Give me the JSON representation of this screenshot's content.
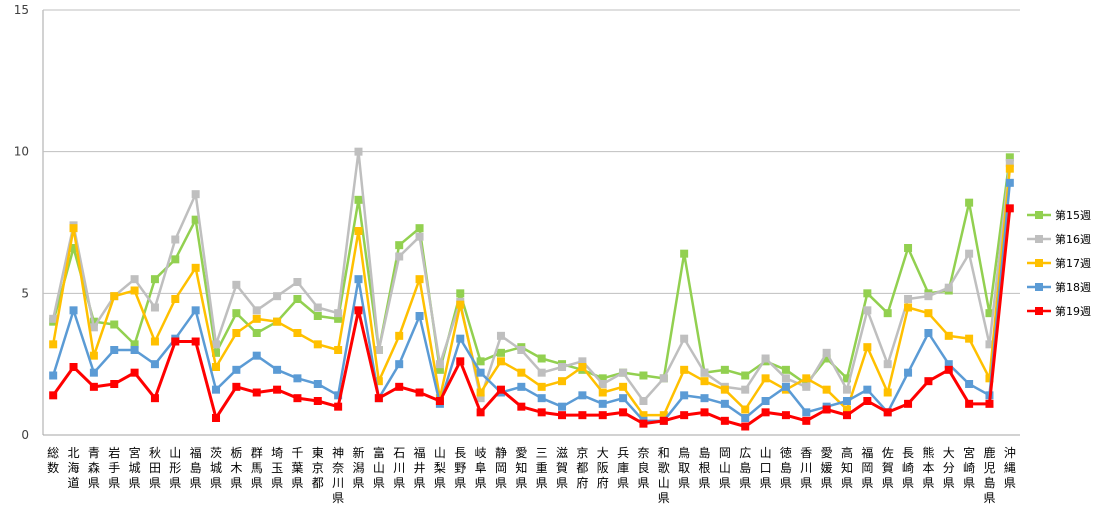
{
  "chart_data": {
    "type": "line",
    "title": "",
    "xlabel": "",
    "ylabel": "",
    "ylim": [
      0,
      15
    ],
    "yticks": [
      0,
      5,
      10,
      15
    ],
    "grid": true,
    "legend_position": "right",
    "categories": [
      "総数",
      "北海道",
      "青森県",
      "岩手県",
      "宮城県",
      "秋田県",
      "山形県",
      "福島県",
      "茨城県",
      "栃木県",
      "群馬県",
      "埼玉県",
      "千葉県",
      "東京都",
      "神奈川県",
      "新潟県",
      "富山県",
      "石川県",
      "福井県",
      "山梨県",
      "長野県",
      "岐阜県",
      "静岡県",
      "愛知県",
      "三重県",
      "滋賀県",
      "京都府",
      "大阪府",
      "兵庫県",
      "奈良県",
      "和歌山県",
      "鳥取県",
      "島根県",
      "岡山県",
      "広島県",
      "山口県",
      "徳島県",
      "香川県",
      "愛媛県",
      "高知県",
      "福岡県",
      "佐賀県",
      "長崎県",
      "熊本県",
      "大分県",
      "宮崎県",
      "鹿児島県",
      "沖縄県"
    ],
    "series": [
      {
        "name": "第15週",
        "color": "#92d050",
        "values": [
          4.0,
          6.6,
          4.0,
          3.9,
          3.2,
          5.5,
          6.2,
          7.6,
          2.9,
          4.3,
          3.6,
          4.0,
          4.8,
          4.2,
          4.1,
          8.3,
          3.0,
          6.7,
          7.3,
          2.3,
          5.0,
          2.6,
          2.9,
          3.1,
          2.7,
          2.5,
          2.3,
          2.0,
          2.2,
          2.1,
          2.0,
          6.4,
          2.2,
          2.3,
          2.1,
          2.6,
          2.3,
          1.8,
          2.7,
          2.0,
          5.0,
          4.3,
          6.6,
          5.0,
          5.1,
          8.2,
          4.3,
          9.8
        ]
      },
      {
        "name": "第16週",
        "color": "#bfbfbf",
        "values": [
          4.1,
          7.4,
          3.8,
          4.9,
          5.5,
          4.5,
          6.9,
          8.5,
          3.2,
          5.3,
          4.4,
          4.9,
          5.4,
          4.5,
          4.3,
          10.0,
          3.0,
          6.3,
          7.0,
          2.5,
          4.7,
          1.3,
          3.5,
          3.0,
          2.2,
          2.4,
          2.6,
          1.8,
          2.2,
          1.2,
          2.0,
          3.4,
          2.2,
          1.7,
          1.6,
          2.7,
          2.0,
          1.7,
          2.9,
          1.6,
          4.4,
          2.5,
          4.8,
          4.9,
          5.2,
          6.4,
          3.2,
          9.6
        ]
      },
      {
        "name": "第17週",
        "color": "#ffc000",
        "values": [
          3.2,
          7.3,
          2.8,
          4.9,
          5.1,
          3.3,
          4.8,
          5.9,
          2.4,
          3.6,
          4.1,
          4.0,
          3.6,
          3.2,
          3.0,
          7.2,
          1.9,
          3.5,
          5.5,
          1.3,
          4.6,
          1.5,
          2.6,
          2.2,
          1.7,
          1.9,
          2.4,
          1.5,
          1.7,
          0.7,
          0.7,
          2.3,
          1.9,
          1.6,
          0.9,
          2.0,
          1.6,
          2.0,
          1.6,
          0.9,
          3.1,
          1.5,
          4.5,
          4.3,
          3.5,
          3.4,
          2.0,
          9.4
        ]
      },
      {
        "name": "第18週",
        "color": "#5b9bd5",
        "values": [
          2.1,
          4.4,
          2.2,
          3.0,
          3.0,
          2.5,
          3.4,
          4.4,
          1.6,
          2.3,
          2.8,
          2.3,
          2.0,
          1.8,
          1.4,
          5.5,
          1.3,
          2.5,
          4.2,
          1.1,
          3.4,
          2.2,
          1.5,
          1.7,
          1.3,
          1.0,
          1.4,
          1.1,
          1.3,
          0.5,
          0.5,
          1.4,
          1.3,
          1.1,
          0.6,
          1.2,
          1.7,
          0.8,
          1.0,
          1.2,
          1.6,
          0.8,
          2.2,
          3.6,
          2.5,
          1.8,
          1.4,
          8.9
        ]
      },
      {
        "name": "第19週",
        "color": "#ff0000",
        "values": [
          1.4,
          2.4,
          1.7,
          1.8,
          2.2,
          1.3,
          3.3,
          3.3,
          0.6,
          1.7,
          1.5,
          1.6,
          1.3,
          1.2,
          1.0,
          4.4,
          1.3,
          1.7,
          1.5,
          1.2,
          2.6,
          0.8,
          1.6,
          1.0,
          0.8,
          0.7,
          0.7,
          0.7,
          0.8,
          0.4,
          0.5,
          0.7,
          0.8,
          0.5,
          0.3,
          0.8,
          0.7,
          0.5,
          0.9,
          0.7,
          1.2,
          0.8,
          1.1,
          1.9,
          2.3,
          1.1,
          1.1,
          8.0
        ]
      }
    ]
  }
}
